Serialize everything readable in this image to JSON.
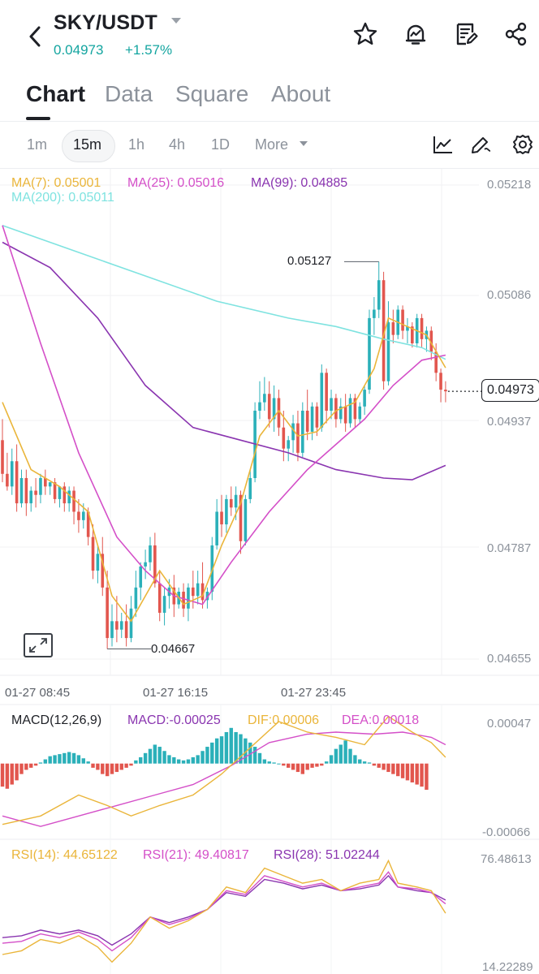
{
  "header": {
    "pair": "SKY/USDT",
    "price": "0.04973",
    "change": "+1.57%",
    "icons": [
      "back-icon",
      "star-icon",
      "alert-bell-icon",
      "notes-icon",
      "share-icon"
    ]
  },
  "tabs": [
    {
      "label": "Chart",
      "active": true
    },
    {
      "label": "Data",
      "active": false
    },
    {
      "label": "Square",
      "active": false
    },
    {
      "label": "About",
      "active": false
    }
  ],
  "intervals": [
    {
      "label": "1m",
      "active": false
    },
    {
      "label": "15m",
      "active": true
    },
    {
      "label": "1h",
      "active": false
    },
    {
      "label": "4h",
      "active": false
    },
    {
      "label": "1D",
      "active": false
    },
    {
      "label": "More",
      "active": false
    }
  ],
  "toolbar_icons": [
    "indicator-icon",
    "draw-icon",
    "settings-icon"
  ],
  "ma_legend": {
    "ma7": "MA(7): 0.05001",
    "ma25": "MA(25): 0.05016",
    "ma99": "MA(99): 0.04885",
    "ma200": "MA(200): 0.05011"
  },
  "macd_legend": {
    "name": "MACD(12,26,9)",
    "macd": "MACD:-0.00025",
    "dif": "DIF:0.00006",
    "dea": "DEA:0.00018"
  },
  "rsi_legend": {
    "rsi14": "RSI(14): 44.65122",
    "rsi21": "RSI(21): 49.40817",
    "rsi28": "RSI(28): 51.02244"
  },
  "colors": {
    "up": "#2bb0b9",
    "down": "#e2564e",
    "ma7": "#eab53a",
    "ma25": "#d44fc8",
    "ma99": "#8a35b0",
    "ma200": "#7fe3e0",
    "accent": "#14a5a0"
  },
  "chart_data": {
    "type": "candlestick",
    "price_axis": [
      "0.05218",
      "0.05086",
      "0.04937",
      "0.04787",
      "0.04655"
    ],
    "time_axis": [
      "01-27 08:45",
      "01-27 16:15",
      "01-27 23:45"
    ],
    "last_price": "0.04973",
    "annotations": {
      "high": "0.05127",
      "low": "0.04667"
    },
    "candles": [
      [
        0.04915,
        0.0494,
        0.04875,
        0.04865
      ],
      [
        0.04875,
        0.049,
        0.0486,
        0.04855
      ],
      [
        0.0486,
        0.04905,
        0.0489,
        0.0485
      ],
      [
        0.0489,
        0.0491,
        0.0484,
        0.0483
      ],
      [
        0.0484,
        0.0488,
        0.0487,
        0.04835
      ],
      [
        0.0487,
        0.0488,
        0.0484,
        0.04825
      ],
      [
        0.0484,
        0.0486,
        0.04855,
        0.0483
      ],
      [
        0.04855,
        0.0487,
        0.0485,
        0.04835
      ],
      [
        0.0485,
        0.04875,
        0.0487,
        0.0484
      ],
      [
        0.0487,
        0.0488,
        0.0486,
        0.0485
      ],
      [
        0.0486,
        0.04865,
        0.04865,
        0.0485
      ],
      [
        0.04865,
        0.0487,
        0.04845,
        0.0484
      ],
      [
        0.04845,
        0.0486,
        0.0486,
        0.04835
      ],
      [
        0.0486,
        0.04865,
        0.0484,
        0.0483
      ],
      [
        0.0484,
        0.0486,
        0.04855,
        0.0483
      ],
      [
        0.04855,
        0.0486,
        0.0483,
        0.04815
      ],
      [
        0.0483,
        0.04845,
        0.0482,
        0.04805
      ],
      [
        0.0482,
        0.0484,
        0.0483,
        0.0481
      ],
      [
        0.0483,
        0.04835,
        0.048,
        0.0479
      ],
      [
        0.048,
        0.04815,
        0.0476,
        0.0475
      ],
      [
        0.0476,
        0.0479,
        0.0478,
        0.04745
      ],
      [
        0.0478,
        0.048,
        0.0474,
        0.0473
      ],
      [
        0.0474,
        0.0476,
        0.0468,
        0.04667
      ],
      [
        0.0468,
        0.0472,
        0.047,
        0.0467
      ],
      [
        0.047,
        0.0473,
        0.0469,
        0.04675
      ],
      [
        0.0469,
        0.0471,
        0.047,
        0.0468
      ],
      [
        0.047,
        0.0472,
        0.0468,
        0.0467
      ],
      [
        0.0468,
        0.0473,
        0.04715,
        0.04675
      ],
      [
        0.04715,
        0.0476,
        0.0474,
        0.04705
      ],
      [
        0.0474,
        0.0477,
        0.04765,
        0.04725
      ],
      [
        0.04765,
        0.04785,
        0.0477,
        0.0475
      ],
      [
        0.0477,
        0.048,
        0.0479,
        0.0476
      ],
      [
        0.0479,
        0.04805,
        0.04745,
        0.0474
      ],
      [
        0.04745,
        0.0476,
        0.0471,
        0.047
      ],
      [
        0.0471,
        0.0474,
        0.0473,
        0.04695
      ],
      [
        0.0473,
        0.0475,
        0.0474,
        0.04715
      ],
      [
        0.0474,
        0.04755,
        0.0472,
        0.04705
      ],
      [
        0.0472,
        0.0474,
        0.04735,
        0.04715
      ],
      [
        0.04735,
        0.04745,
        0.04715,
        0.04705
      ],
      [
        0.04715,
        0.04745,
        0.0474,
        0.047
      ],
      [
        0.0474,
        0.0476,
        0.0473,
        0.04715
      ],
      [
        0.0473,
        0.0476,
        0.04745,
        0.0472
      ],
      [
        0.04745,
        0.0477,
        0.04725,
        0.04715
      ],
      [
        0.04725,
        0.0474,
        0.04735,
        0.04715
      ],
      [
        0.04735,
        0.048,
        0.0479,
        0.04725
      ],
      [
        0.0479,
        0.04845,
        0.0483,
        0.04785
      ],
      [
        0.0483,
        0.0485,
        0.04815,
        0.048
      ],
      [
        0.04815,
        0.0485,
        0.04845,
        0.04805
      ],
      [
        0.04845,
        0.0486,
        0.04835,
        0.04825
      ],
      [
        0.04835,
        0.0486,
        0.0485,
        0.0482
      ],
      [
        0.0485,
        0.04855,
        0.04795,
        0.0478
      ],
      [
        0.04795,
        0.0485,
        0.04845,
        0.0479
      ],
      [
        0.04845,
        0.0488,
        0.0487,
        0.0484
      ],
      [
        0.0487,
        0.0496,
        0.0495,
        0.04865
      ],
      [
        0.0495,
        0.04985,
        0.0496,
        0.0494
      ],
      [
        0.0496,
        0.0499,
        0.0497,
        0.0495
      ],
      [
        0.0497,
        0.04985,
        0.0494,
        0.0493
      ],
      [
        0.0494,
        0.0498,
        0.04965,
        0.04925
      ],
      [
        0.04965,
        0.04975,
        0.0493,
        0.0492
      ],
      [
        0.0493,
        0.0495,
        0.04905,
        0.0489
      ],
      [
        0.04905,
        0.0492,
        0.04915,
        0.0489
      ],
      [
        0.04915,
        0.04945,
        0.04935,
        0.049
      ],
      [
        0.04935,
        0.0495,
        0.049,
        0.0489
      ],
      [
        0.049,
        0.0496,
        0.0495,
        0.04895
      ],
      [
        0.0495,
        0.04975,
        0.04925,
        0.04915
      ],
      [
        0.04925,
        0.0496,
        0.04955,
        0.04915
      ],
      [
        0.04955,
        0.0496,
        0.0493,
        0.0492
      ],
      [
        0.0493,
        0.05005,
        0.04995,
        0.04925
      ],
      [
        0.04995,
        0.05,
        0.0495,
        0.04935
      ],
      [
        0.0495,
        0.04975,
        0.04965,
        0.0494
      ],
      [
        0.04965,
        0.0497,
        0.0494,
        0.0493
      ],
      [
        0.0494,
        0.04965,
        0.04955,
        0.04935
      ],
      [
        0.04955,
        0.0497,
        0.04935,
        0.04925
      ],
      [
        0.04935,
        0.0497,
        0.04965,
        0.0493
      ],
      [
        0.04965,
        0.0497,
        0.0494,
        0.0493
      ],
      [
        0.0494,
        0.0496,
        0.04955,
        0.04935
      ],
      [
        0.04955,
        0.0498,
        0.04975,
        0.04945
      ],
      [
        0.04975,
        0.0507,
        0.0506,
        0.0497
      ],
      [
        0.0506,
        0.05085,
        0.0507,
        0.0504
      ],
      [
        0.0507,
        0.05127,
        0.05105,
        0.0506
      ],
      [
        0.05105,
        0.05115,
        0.04985,
        0.04975
      ],
      [
        0.04985,
        0.0508,
        0.05055,
        0.0498
      ],
      [
        0.05055,
        0.0507,
        0.0504,
        0.0503
      ],
      [
        0.0504,
        0.05075,
        0.0507,
        0.05035
      ],
      [
        0.0507,
        0.05075,
        0.05045,
        0.05035
      ],
      [
        0.05045,
        0.0506,
        0.0505,
        0.0503
      ],
      [
        0.0505,
        0.05055,
        0.0503,
        0.05025
      ],
      [
        0.0503,
        0.05065,
        0.0506,
        0.05025
      ],
      [
        0.0506,
        0.05065,
        0.05035,
        0.05025
      ],
      [
        0.05035,
        0.0505,
        0.05045,
        0.0502
      ],
      [
        0.05045,
        0.0505,
        0.0502,
        0.0501
      ],
      [
        0.0502,
        0.0503,
        0.04995,
        0.04985
      ],
      [
        0.04995,
        0.05,
        0.04975,
        0.0496
      ],
      [
        0.04975,
        0.04985,
        0.04973,
        0.0496
      ]
    ],
    "ma": {
      "ma7": [
        [
          0,
          0.0496
        ],
        [
          6,
          0.0488
        ],
        [
          12,
          0.0486
        ],
        [
          18,
          0.0483
        ],
        [
          23,
          0.0473
        ],
        [
          27,
          0.047
        ],
        [
          33,
          0.0476
        ],
        [
          38,
          0.0472
        ],
        [
          42,
          0.0473
        ],
        [
          46,
          0.0479
        ],
        [
          50,
          0.0484
        ],
        [
          54,
          0.0492
        ],
        [
          58,
          0.0495
        ],
        [
          62,
          0.0492
        ],
        [
          66,
          0.04925
        ],
        [
          70,
          0.0495
        ],
        [
          74,
          0.0496
        ],
        [
          78,
          0.05
        ],
        [
          81,
          0.0506
        ],
        [
          85,
          0.0505
        ],
        [
          89,
          0.0504
        ],
        [
          93,
          0.05001
        ]
      ],
      "ma25": [
        [
          0,
          0.0517
        ],
        [
          8,
          0.0503
        ],
        [
          16,
          0.049
        ],
        [
          24,
          0.048
        ],
        [
          30,
          0.0476
        ],
        [
          36,
          0.0473
        ],
        [
          42,
          0.0472
        ],
        [
          48,
          0.0477
        ],
        [
          56,
          0.0483
        ],
        [
          64,
          0.0488
        ],
        [
          70,
          0.0491
        ],
        [
          76,
          0.0494
        ],
        [
          82,
          0.0498
        ],
        [
          88,
          0.0501
        ],
        [
          93,
          0.05016
        ]
      ],
      "ma99": [
        [
          0,
          0.0515
        ],
        [
          10,
          0.0512
        ],
        [
          20,
          0.0506
        ],
        [
          30,
          0.0498
        ],
        [
          40,
          0.0493
        ],
        [
          50,
          0.04915
        ],
        [
          60,
          0.049
        ],
        [
          70,
          0.0488
        ],
        [
          80,
          0.0487
        ],
        [
          86,
          0.04868
        ],
        [
          93,
          0.04885
        ]
      ],
      "ma200": [
        [
          0,
          0.0517
        ],
        [
          15,
          0.0514
        ],
        [
          30,
          0.0511
        ],
        [
          45,
          0.0508
        ],
        [
          60,
          0.0506
        ],
        [
          70,
          0.0505
        ],
        [
          80,
          0.05035
        ],
        [
          88,
          0.05025
        ],
        [
          93,
          0.05011
        ]
      ]
    },
    "macd": {
      "axis": [
        "0.00047",
        "-0.00066"
      ],
      "hist": [
        -0.00022,
        -0.00024,
        -0.0002,
        -0.00016,
        -0.0001,
        -6e-05,
        -4e-05,
        -2e-05,
        1e-05,
        4e-05,
        7e-05,
        8e-05,
        9e-05,
        0.0001,
        0.00011,
        0.0001,
        8e-05,
        5e-05,
        2e-05,
        -4e-05,
        -6e-05,
        -0.0001,
        -0.00012,
        -0.0001,
        -8e-05,
        -6e-05,
        -4e-05,
        -2e-05,
        3e-05,
        6e-05,
        0.0001,
        0.00014,
        0.00018,
        0.00016,
        0.00012,
        8e-05,
        6e-05,
        4e-05,
        3e-05,
        4e-05,
        6e-05,
        8e-05,
        0.00012,
        0.00016,
        0.0002,
        0.00024,
        0.00026,
        0.0003,
        0.00034,
        0.0003,
        0.00028,
        0.00024,
        0.0002,
        0.00016,
        0.0001,
        4e-05,
        2e-05,
        1e-05,
        0.0,
        -2e-05,
        -4e-05,
        -6e-05,
        -8e-05,
        -0.0001,
        -6e-05,
        -4e-05,
        -3e-05,
        -2e-05,
        2e-05,
        8e-05,
        0.00014,
        0.00018,
        0.00022,
        0.00014,
        8e-05,
        4e-05,
        2e-05,
        1e-05,
        -2e-05,
        -4e-05,
        -6e-05,
        -8e-05,
        -0.0001,
        -0.00012,
        -0.00014,
        -0.00016,
        -0.00018,
        -0.0002,
        -0.00022,
        -0.00025
      ],
      "dif": [
        [
          0,
          -0.00058
        ],
        [
          8,
          -0.0005
        ],
        [
          16,
          -0.0003
        ],
        [
          22,
          -0.0004
        ],
        [
          27,
          -0.0005
        ],
        [
          33,
          -0.0004
        ],
        [
          40,
          -0.0003
        ],
        [
          46,
          -0.0001
        ],
        [
          52,
          0.00015
        ],
        [
          58,
          0.0004
        ],
        [
          64,
          0.0003
        ],
        [
          70,
          0.00025
        ],
        [
          76,
          0.00018
        ],
        [
          81,
          0.00045
        ],
        [
          86,
          0.0003
        ],
        [
          90,
          0.0002
        ],
        [
          93,
          6e-05
        ]
      ],
      "dea": [
        [
          0,
          -0.0005
        ],
        [
          8,
          -0.0006
        ],
        [
          16,
          -0.0005
        ],
        [
          24,
          -0.0004
        ],
        [
          32,
          -0.0003
        ],
        [
          40,
          -0.0002
        ],
        [
          48,
          -2e-05
        ],
        [
          56,
          0.0002
        ],
        [
          64,
          0.00028
        ],
        [
          70,
          0.0003
        ],
        [
          78,
          0.00028
        ],
        [
          84,
          0.0003
        ],
        [
          90,
          0.00025
        ],
        [
          93,
          0.00018
        ]
      ]
    },
    "rsi": {
      "axis": [
        "76.48613",
        "14.22289"
      ],
      "rsi14": [
        [
          0,
          22
        ],
        [
          4,
          24
        ],
        [
          8,
          30
        ],
        [
          12,
          28
        ],
        [
          16,
          32
        ],
        [
          20,
          26
        ],
        [
          23,
          18
        ],
        [
          27,
          28
        ],
        [
          31,
          42
        ],
        [
          35,
          36
        ],
        [
          39,
          40
        ],
        [
          43,
          46
        ],
        [
          47,
          58
        ],
        [
          51,
          55
        ],
        [
          55,
          68
        ],
        [
          59,
          64
        ],
        [
          63,
          60
        ],
        [
          67,
          62
        ],
        [
          71,
          56
        ],
        [
          75,
          60
        ],
        [
          79,
          62
        ],
        [
          81,
          72
        ],
        [
          83,
          60
        ],
        [
          87,
          58
        ],
        [
          90,
          56
        ],
        [
          93,
          44
        ]
      ],
      "rsi21": [
        [
          0,
          28
        ],
        [
          4,
          29
        ],
        [
          8,
          33
        ],
        [
          12,
          31
        ],
        [
          16,
          34
        ],
        [
          20,
          30
        ],
        [
          23,
          24
        ],
        [
          27,
          31
        ],
        [
          31,
          42
        ],
        [
          35,
          38
        ],
        [
          39,
          41
        ],
        [
          43,
          46
        ],
        [
          47,
          56
        ],
        [
          51,
          54
        ],
        [
          55,
          64
        ],
        [
          59,
          61
        ],
        [
          63,
          58
        ],
        [
          67,
          60
        ],
        [
          71,
          56
        ],
        [
          75,
          58
        ],
        [
          79,
          60
        ],
        [
          81,
          66
        ],
        [
          83,
          58
        ],
        [
          87,
          57
        ],
        [
          90,
          55
        ],
        [
          93,
          49
        ]
      ],
      "rsi28": [
        [
          0,
          31
        ],
        [
          4,
          32
        ],
        [
          8,
          35
        ],
        [
          12,
          33
        ],
        [
          16,
          35
        ],
        [
          20,
          32
        ],
        [
          23,
          27
        ],
        [
          27,
          33
        ],
        [
          31,
          42
        ],
        [
          35,
          39
        ],
        [
          39,
          42
        ],
        [
          43,
          46
        ],
        [
          47,
          55
        ],
        [
          51,
          53
        ],
        [
          55,
          62
        ],
        [
          59,
          60
        ],
        [
          63,
          57
        ],
        [
          67,
          59
        ],
        [
          71,
          56
        ],
        [
          75,
          57
        ],
        [
          79,
          59
        ],
        [
          81,
          64
        ],
        [
          83,
          58
        ],
        [
          87,
          56
        ],
        [
          90,
          55
        ],
        [
          93,
          51
        ]
      ]
    }
  }
}
